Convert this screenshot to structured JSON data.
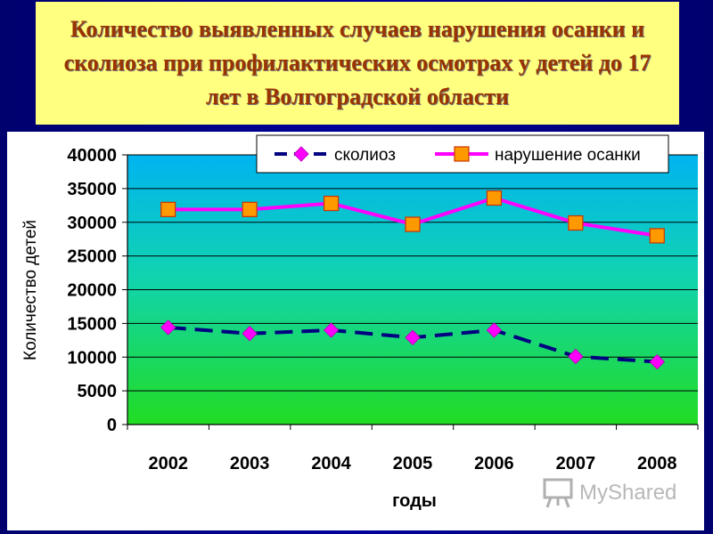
{
  "slide": {
    "title": "Количество выявленных случаев нарушения осанки и сколиоза при профилактических осмотрах у детей до 17 лет в Волгоградской области"
  },
  "watermark": {
    "text": "MyShared",
    "icon": "presentation-board-icon"
  },
  "chart_data": {
    "type": "line",
    "categories": [
      "2002",
      "2003",
      "2004",
      "2005",
      "2006",
      "2007",
      "2008"
    ],
    "series": [
      {
        "name": "сколиоз",
        "values": [
          14400,
          13500,
          14000,
          12900,
          14000,
          10100,
          9300
        ],
        "color": "#000080",
        "marker_color": "#ff00ff",
        "marker": "diamond",
        "dashed": true
      },
      {
        "name": "нарушение осанки",
        "values": [
          31900,
          31900,
          32800,
          29700,
          33600,
          29900,
          28000
        ],
        "color": "#ff00ff",
        "marker_color": "#ff9900",
        "marker": "square",
        "dashed": false
      }
    ],
    "xlabel": "годы",
    "ylabel": "Количество детей",
    "ylim": [
      0,
      40000
    ],
    "yticks": [
      "0",
      "5000",
      "10000",
      "15000",
      "20000",
      "25000",
      "30000",
      "35000",
      "40000"
    ],
    "grid": true,
    "legend_position": "top"
  }
}
